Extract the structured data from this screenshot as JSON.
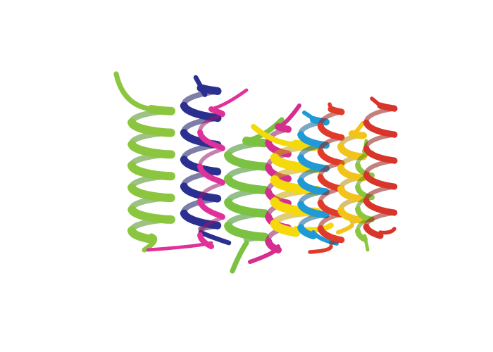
{
  "image": {
    "background": "#ffffff",
    "subject": "curly-ribbon-cluster",
    "ribbons": [
      {
        "name": "green-ribbon-left",
        "color": "#8cc63f",
        "shade": "#4f8f1f"
      },
      {
        "name": "navy-ribbon",
        "color": "#2b2f8f",
        "shade": "#141660"
      },
      {
        "name": "magenta-ribbon-left",
        "color": "#e0309a",
        "shade": "#9c1468"
      },
      {
        "name": "green-ribbon-middle",
        "color": "#7cc242",
        "shade": "#3d8a22"
      },
      {
        "name": "magenta-ribbon-middle",
        "color": "#d62e8f",
        "shade": "#8e145c"
      },
      {
        "name": "yellow-ribbon",
        "color": "#f5d90a",
        "shade": "#c9a600"
      },
      {
        "name": "blue-ribbon",
        "color": "#1f9ad6",
        "shade": "#0c5f94"
      },
      {
        "name": "red-ribbon-left",
        "color": "#e03a2a",
        "shade": "#9a1d12"
      },
      {
        "name": "yellow-ribbon-right",
        "color": "#f2c318",
        "shade": "#b98e00"
      },
      {
        "name": "green-ribbon-right",
        "color": "#8cc63f",
        "shade": "#4f8f1f"
      },
      {
        "name": "red-ribbon-right",
        "color": "#d8342a",
        "shade": "#8f1a12"
      }
    ]
  }
}
